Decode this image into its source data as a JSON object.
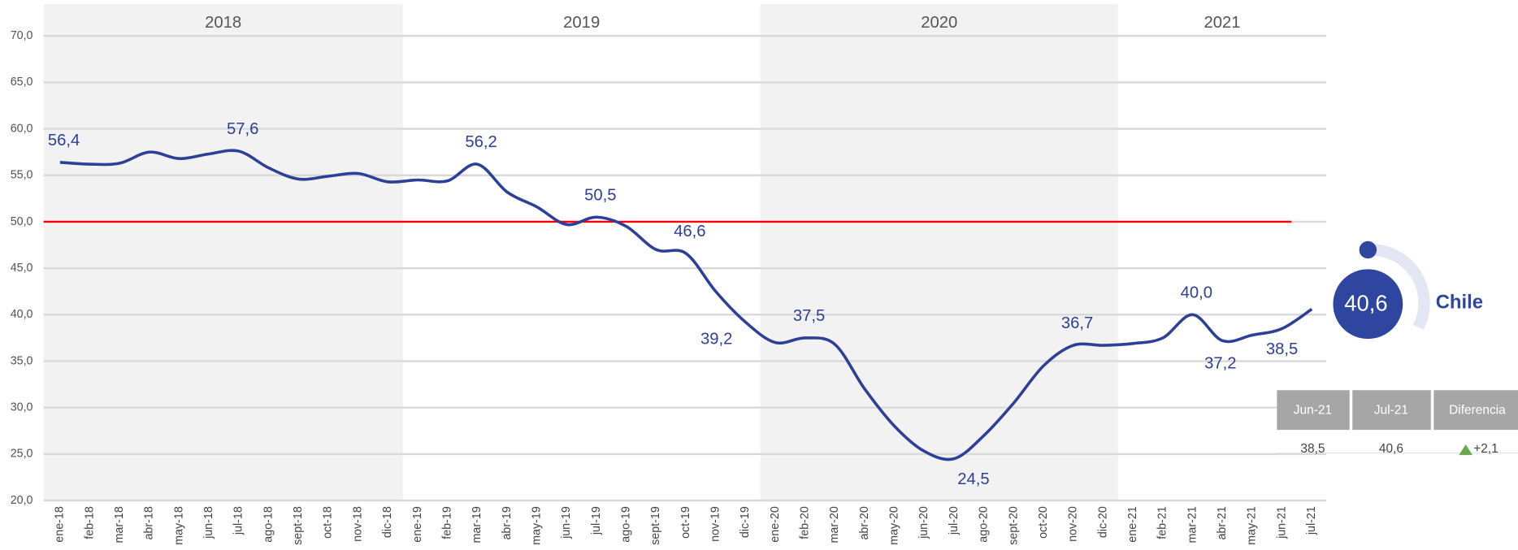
{
  "chart_data": {
    "type": "line",
    "years": [
      "2018",
      "2019",
      "2020",
      "2021"
    ],
    "categories": [
      "ene-18",
      "feb-18",
      "mar-18",
      "abr-18",
      "may-18",
      "jun-18",
      "jul-18",
      "ago-18",
      "sept-18",
      "oct-18",
      "nov-18",
      "dic-18",
      "ene-19",
      "feb-19",
      "mar-19",
      "abr-19",
      "may-19",
      "jun-19",
      "jul-19",
      "ago-19",
      "sept-19",
      "oct-19",
      "nov-19",
      "dic-19",
      "ene-20",
      "feb-20",
      "mar-20",
      "abr-20",
      "may-20",
      "jun-20",
      "jul-20",
      "ago-20",
      "sept-20",
      "oct-20",
      "nov-20",
      "dic-20",
      "ene-21",
      "feb-21",
      "mar-21",
      "abr-21",
      "may-21",
      "jun-21",
      "jul-21"
    ],
    "series": [
      {
        "color": "#2e3f98",
        "values": [
          56.4,
          56.2,
          56.3,
          57.5,
          56.8,
          57.3,
          57.6,
          55.8,
          54.6,
          54.9,
          55.2,
          54.3,
          54.5,
          54.4,
          56.2,
          53.2,
          51.6,
          49.7,
          50.5,
          49.5,
          47.0,
          46.6,
          42.5,
          39.2,
          37.0,
          37.5,
          36.8,
          32.0,
          28.0,
          25.3,
          24.5,
          27.0,
          30.5,
          34.5,
          36.7,
          36.7,
          36.9,
          37.5,
          40.0,
          37.2,
          37.8,
          38.5,
          40.6
        ],
        "value_labels": [
          "56,4",
          null,
          null,
          null,
          null,
          null,
          "57,6",
          null,
          null,
          null,
          null,
          null,
          null,
          null,
          "56,2",
          null,
          null,
          null,
          "50,5",
          null,
          null,
          "46,6",
          null,
          "39,2",
          null,
          "37,5",
          null,
          null,
          null,
          null,
          "24,5",
          null,
          null,
          null,
          "36,7",
          null,
          null,
          null,
          "40,0",
          "37,2",
          null,
          "38,5",
          null
        ]
      }
    ],
    "reference_line": {
      "value": 50,
      "color": "#ff0000"
    },
    "ylim": [
      20,
      70
    ],
    "yticks": [
      {
        "value": 20,
        "label": "20,0"
      },
      {
        "value": 25,
        "label": "25,0"
      },
      {
        "value": 30,
        "label": "30,0"
      },
      {
        "value": 35,
        "label": "35,0"
      },
      {
        "value": 40,
        "label": "40,0"
      },
      {
        "value": 45,
        "label": "45,0"
      },
      {
        "value": 50,
        "label": "50,0"
      },
      {
        "value": 55,
        "label": "55,0"
      },
      {
        "value": 60,
        "label": "60,0"
      },
      {
        "value": 65,
        "label": "65,0"
      },
      {
        "value": 70,
        "label": "70,0"
      }
    ],
    "grid": true
  },
  "indicator": {
    "value": "40,6",
    "name": "Chile"
  },
  "table": {
    "header": [
      "Jun-21",
      "Jul-21",
      "Diferencia"
    ],
    "rows": [
      [
        "38,5",
        "40,6",
        "+2,1"
      ]
    ]
  }
}
